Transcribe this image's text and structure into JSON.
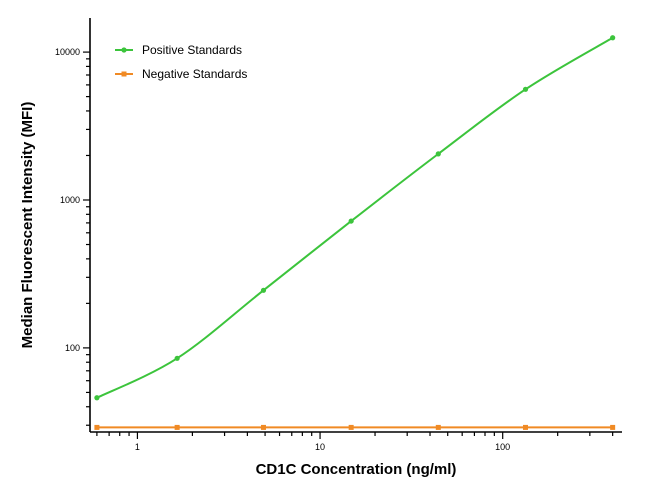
{
  "chart_data": {
    "type": "line",
    "xlabel": "CD1C Concentration (ng/ml)",
    "ylabel": "Median  Fluorescent Intensity  (MFI)",
    "x_scale": "log",
    "y_scale": "log",
    "xlim": [
      0.55,
      450
    ],
    "ylim": [
      27,
      17000
    ],
    "x_ticks": [
      1,
      10,
      100
    ],
    "x_tick_labels": [
      "1",
      "10",
      "100"
    ],
    "y_ticks": [
      100,
      1000,
      10000
    ],
    "y_tick_labels": [
      "100",
      "1000",
      "10000"
    ],
    "grid": false,
    "legend_position": "top-left",
    "colors": {
      "positive": "#3cc43c",
      "negative": "#f08a24"
    },
    "series": [
      {
        "name": "Positive Standards",
        "x": [
          0.6,
          1.65,
          4.9,
          14.8,
          44.4,
          133.3,
          400
        ],
        "y": [
          46,
          85,
          245,
          720,
          2050,
          5600,
          12500
        ]
      },
      {
        "name": "Negative Standards",
        "x": [
          0.6,
          1.65,
          4.9,
          14.8,
          44.4,
          133.3,
          400
        ],
        "y": [
          29,
          29,
          29,
          29,
          29,
          29,
          29
        ]
      }
    ]
  }
}
